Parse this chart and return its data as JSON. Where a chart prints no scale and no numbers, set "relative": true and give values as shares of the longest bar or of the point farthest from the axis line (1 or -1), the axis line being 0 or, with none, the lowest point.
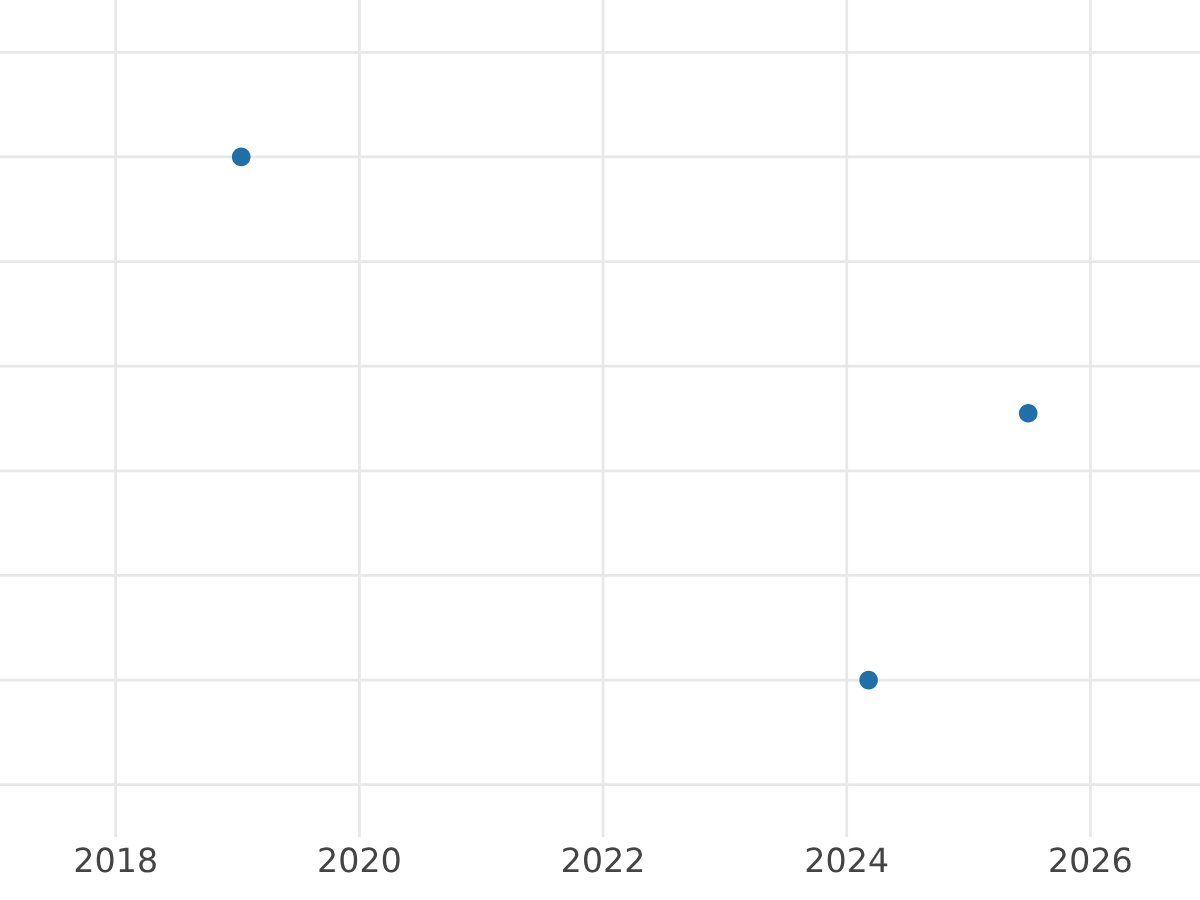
{
  "chart_data": {
    "type": "scatter",
    "relative": true,
    "x": [
      2019.03,
      2024.18,
      2025.49
    ],
    "values": [
      1,
      0,
      0.51
    ],
    "color": "#1f6fa8",
    "xlim": [
      2017.05,
      2026.9
    ],
    "xticks": [
      2018,
      2020,
      2022,
      2024,
      2026
    ],
    "grid": true,
    "marker": "circle",
    "tick_labels": "x"
  }
}
